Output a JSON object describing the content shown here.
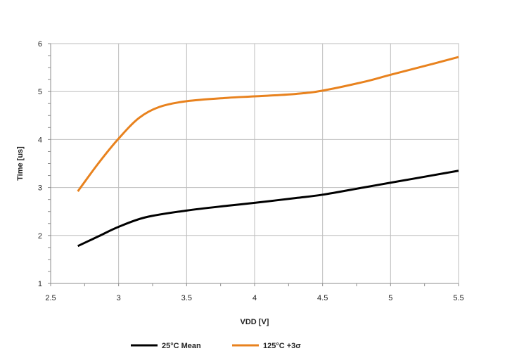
{
  "chart_data": {
    "type": "line",
    "title": "",
    "xlabel": "VDD [V]",
    "ylabel": "Time [us]",
    "xlim": [
      2.5,
      5.5
    ],
    "ylim": [
      1,
      6
    ],
    "xticks": [
      2.5,
      3,
      3.5,
      4,
      4.5,
      5,
      5.5
    ],
    "xtick_labels": [
      "2.5",
      "3",
      "3.5",
      "4",
      "4.5",
      "5",
      "5.5"
    ],
    "yticks": [
      1,
      2,
      3,
      4,
      5,
      6
    ],
    "ytick_labels": [
      "1",
      "2",
      "3",
      "4",
      "5",
      "6"
    ],
    "grid": true,
    "legend_position": "bottom",
    "series": [
      {
        "name": "25°C Mean",
        "color": "#000000",
        "x": [
          2.7,
          2.85,
          3.0,
          3.2,
          3.5,
          3.8,
          4.0,
          4.3,
          4.5,
          4.8,
          5.0,
          5.3,
          5.5
        ],
        "y": [
          1.78,
          1.98,
          2.18,
          2.38,
          2.52,
          2.62,
          2.68,
          2.78,
          2.85,
          3.0,
          3.1,
          3.25,
          3.35
        ]
      },
      {
        "name": "125°C +3σ",
        "color": "#e8821e",
        "x": [
          2.7,
          2.85,
          3.0,
          3.15,
          3.3,
          3.5,
          3.8,
          4.0,
          4.3,
          4.5,
          4.8,
          5.0,
          5.3,
          5.5
        ],
        "y": [
          2.92,
          3.5,
          4.02,
          4.45,
          4.68,
          4.8,
          4.87,
          4.9,
          4.95,
          5.02,
          5.2,
          5.35,
          5.57,
          5.72
        ]
      }
    ]
  }
}
